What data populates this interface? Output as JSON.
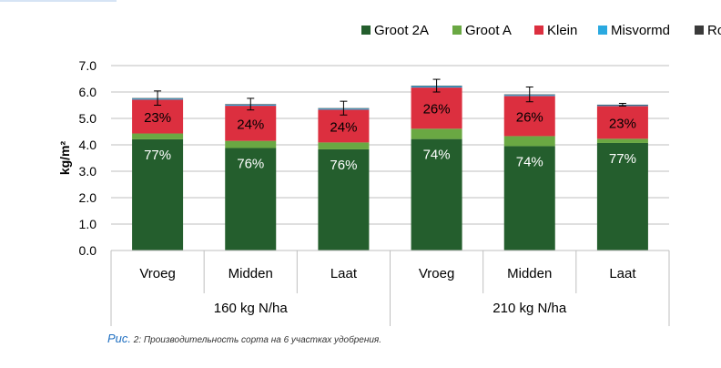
{
  "chart_data": {
    "type": "bar",
    "stacked": true,
    "ylabel": "kg/m²",
    "ylim": [
      0,
      7
    ],
    "ytick_step": 1,
    "ytick_labels": [
      "0.0",
      "1.0",
      "2.0",
      "3.0",
      "4.0",
      "5.0",
      "6.0",
      "7.0"
    ],
    "grid": true,
    "legend_position": "top-right",
    "categories": [
      "Vroeg",
      "Midden",
      "Laat",
      "Vroeg",
      "Midden",
      "Laat"
    ],
    "groups": [
      {
        "label": "160 kg N/ha",
        "categories": [
          "Vroeg",
          "Midden",
          "Laat"
        ]
      },
      {
        "label": "210 kg N/ha",
        "categories": [
          "Vroeg",
          "Midden",
          "Laat"
        ]
      }
    ],
    "series": [
      {
        "name": "Groot 2A",
        "color": "#245e2d",
        "values": [
          4.21,
          3.88,
          3.83,
          4.22,
          3.95,
          4.07
        ]
      },
      {
        "name": "Groot A",
        "color": "#6aa843",
        "values": [
          0.22,
          0.27,
          0.26,
          0.39,
          0.38,
          0.16
        ]
      },
      {
        "name": "Klein",
        "color": "#dc2f3f",
        "values": [
          1.28,
          1.33,
          1.24,
          1.56,
          1.52,
          1.24
        ]
      },
      {
        "name": "Misvormd",
        "color": "#2aa9e0",
        "values": [
          0.04,
          0.04,
          0.04,
          0.05,
          0.04,
          0.03
        ]
      },
      {
        "name": "Rot",
        "color": "#3a3a3a",
        "values": [
          0.02,
          0.02,
          0.02,
          0.02,
          0.02,
          0.02
        ]
      }
    ],
    "percent_labels": {
      "Groot 2A": [
        "77%",
        "76%",
        "76%",
        "74%",
        "74%",
        "77%"
      ],
      "Klein": [
        "23%",
        "24%",
        "24%",
        "26%",
        "26%",
        "23%"
      ]
    },
    "error_bars": [
      0.27,
      0.22,
      0.26,
      0.24,
      0.28,
      0.05
    ]
  },
  "caption": {
    "label": "Рис.",
    "number": "2:",
    "text": "Производительность сорта на 6 участках удобрения."
  }
}
